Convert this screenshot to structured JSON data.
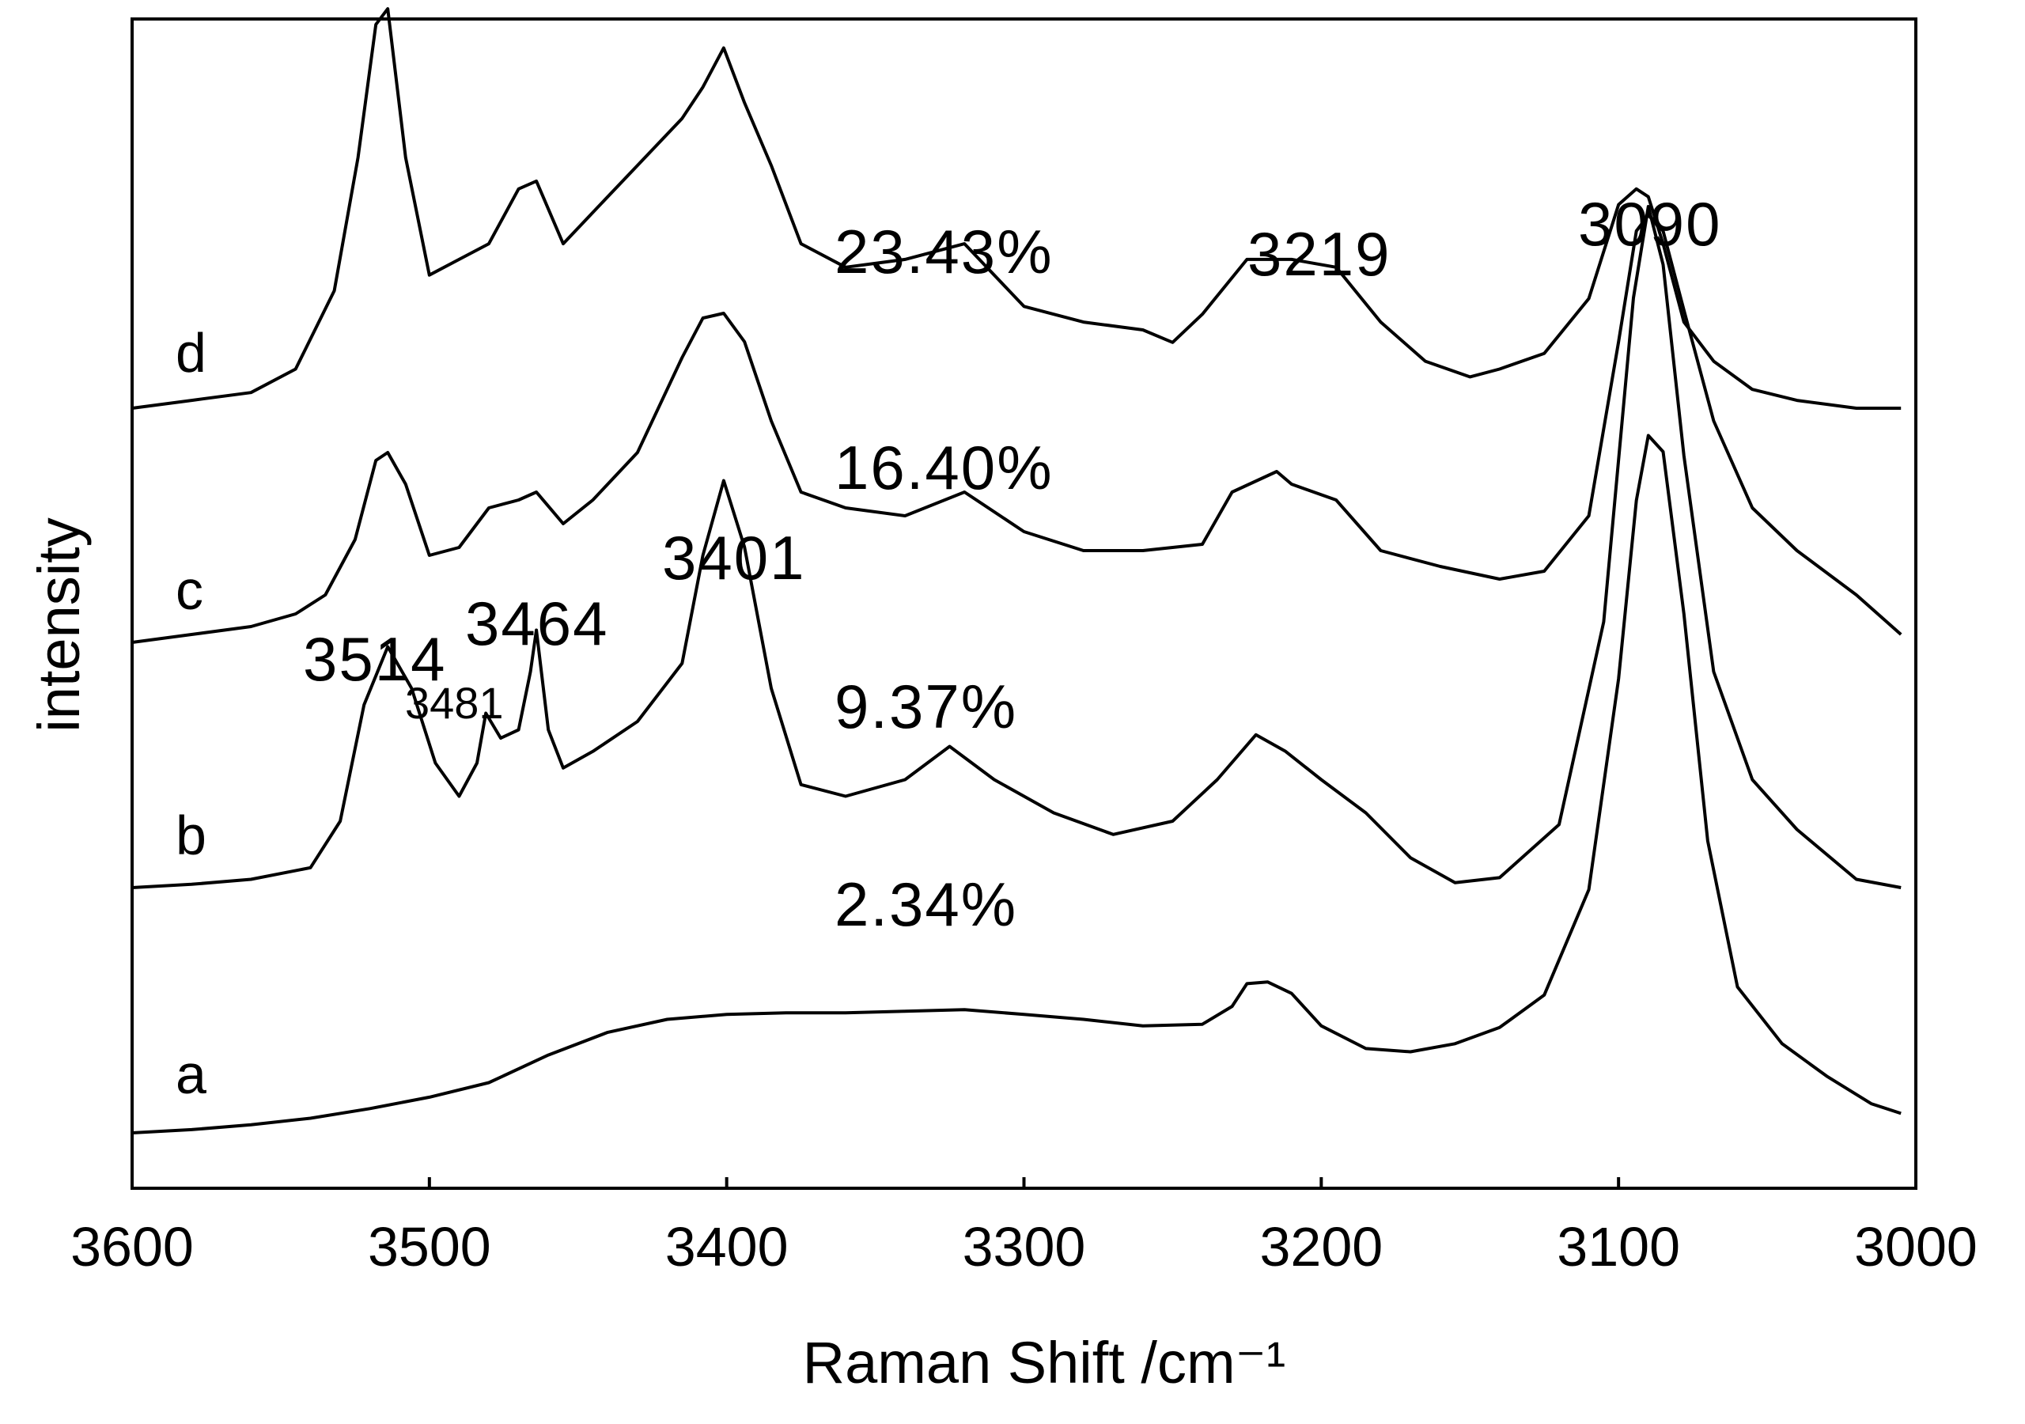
{
  "chart_data": {
    "type": "line",
    "title": "",
    "xlabel": "Raman Shift /cm⁻¹",
    "ylabel": "intensity",
    "xlim": [
      3600,
      3000
    ],
    "x_reversed": true,
    "x_ticks": [
      3600,
      3500,
      3400,
      3300,
      3200,
      3100,
      3000
    ],
    "y_ticks_shown": false,
    "grid": false,
    "series": [
      {
        "name": "a",
        "concentration": "2.34%",
        "baseline": 0.0,
        "x": [
          3600,
          3580,
          3560,
          3540,
          3520,
          3500,
          3480,
          3460,
          3440,
          3420,
          3400,
          3380,
          3360,
          3340,
          3320,
          3300,
          3280,
          3260,
          3240,
          3230,
          3225,
          3218,
          3210,
          3200,
          3185,
          3170,
          3155,
          3140,
          3125,
          3110,
          3100,
          3094,
          3090,
          3085,
          3078,
          3070,
          3060,
          3045,
          3030,
          3015,
          3005
        ],
        "y": [
          0.0,
          0.02,
          0.05,
          0.09,
          0.15,
          0.22,
          0.31,
          0.48,
          0.62,
          0.7,
          0.73,
          0.74,
          0.74,
          0.75,
          0.76,
          0.73,
          0.7,
          0.66,
          0.67,
          0.78,
          0.92,
          0.93,
          0.86,
          0.66,
          0.52,
          0.5,
          0.55,
          0.65,
          0.85,
          1.5,
          2.8,
          3.9,
          4.3,
          4.2,
          3.2,
          1.8,
          0.9,
          0.55,
          0.35,
          0.18,
          0.12
        ]
      },
      {
        "name": "b",
        "concentration": "9.37%",
        "baseline": 0.0,
        "x": [
          3600,
          3580,
          3560,
          3540,
          3530,
          3522,
          3514,
          3506,
          3498,
          3490,
          3484,
          3481,
          3476,
          3470,
          3466,
          3464,
          3460,
          3455,
          3445,
          3430,
          3415,
          3408,
          3401,
          3394,
          3385,
          3375,
          3360,
          3340,
          3325,
          3310,
          3290,
          3270,
          3250,
          3235,
          3222,
          3212,
          3200,
          3185,
          3170,
          3155,
          3140,
          3120,
          3105,
          3095,
          3090,
          3085,
          3078,
          3068,
          3055,
          3040,
          3020,
          3005
        ],
        "y": [
          0.0,
          0.02,
          0.05,
          0.12,
          0.4,
          1.1,
          1.45,
          1.2,
          0.75,
          0.55,
          0.75,
          1.05,
          0.9,
          0.95,
          1.3,
          1.55,
          0.95,
          0.72,
          0.82,
          1.0,
          1.35,
          2.0,
          2.45,
          2.05,
          1.2,
          0.62,
          0.55,
          0.65,
          0.85,
          0.65,
          0.45,
          0.32,
          0.4,
          0.65,
          0.92,
          0.82,
          0.65,
          0.45,
          0.18,
          0.03,
          0.06,
          0.38,
          1.6,
          3.55,
          4.1,
          3.75,
          2.6,
          1.3,
          0.65,
          0.35,
          0.05,
          0.0
        ]
      },
      {
        "name": "c",
        "concentration": "16.40%",
        "baseline": 0.0,
        "x": [
          3600,
          3580,
          3560,
          3545,
          3535,
          3525,
          3518,
          3514,
          3508,
          3500,
          3490,
          3480,
          3470,
          3464,
          3455,
          3445,
          3430,
          3415,
          3408,
          3401,
          3394,
          3385,
          3375,
          3360,
          3340,
          3320,
          3300,
          3280,
          3260,
          3240,
          3230,
          3215,
          3210,
          3195,
          3180,
          3160,
          3140,
          3125,
          3110,
          3100,
          3094,
          3090,
          3085,
          3078,
          3068,
          3055,
          3040,
          3020,
          3005
        ],
        "y": [
          0.0,
          0.05,
          0.1,
          0.18,
          0.3,
          0.65,
          1.15,
          1.2,
          1.0,
          0.55,
          0.6,
          0.85,
          0.9,
          0.95,
          0.75,
          0.9,
          1.2,
          1.8,
          2.05,
          2.08,
          1.9,
          1.4,
          0.95,
          0.85,
          0.8,
          0.95,
          0.7,
          0.58,
          0.58,
          0.62,
          0.95,
          1.08,
          1.0,
          0.9,
          0.58,
          0.48,
          0.4,
          0.45,
          0.8,
          1.9,
          2.6,
          2.7,
          2.6,
          2.1,
          1.4,
          0.85,
          0.58,
          0.3,
          0.05
        ]
      },
      {
        "name": "d",
        "concentration": "23.43%",
        "baseline": 0.0,
        "x": [
          3600,
          3580,
          3560,
          3545,
          3532,
          3524,
          3518,
          3514,
          3508,
          3500,
          3490,
          3480,
          3470,
          3464,
          3455,
          3445,
          3430,
          3415,
          3408,
          3401,
          3394,
          3385,
          3375,
          3360,
          3340,
          3320,
          3300,
          3280,
          3260,
          3250,
          3240,
          3225,
          3210,
          3195,
          3180,
          3165,
          3150,
          3140,
          3125,
          3110,
          3100,
          3094,
          3090,
          3085,
          3078,
          3068,
          3055,
          3040,
          3020,
          3005
        ],
        "y": [
          0.0,
          0.05,
          0.1,
          0.25,
          0.75,
          1.6,
          2.45,
          2.55,
          1.6,
          0.85,
          0.95,
          1.05,
          1.4,
          1.45,
          1.05,
          1.25,
          1.55,
          1.85,
          2.05,
          2.3,
          1.95,
          1.55,
          1.05,
          0.9,
          0.95,
          1.05,
          0.65,
          0.55,
          0.5,
          0.42,
          0.6,
          0.95,
          0.95,
          0.9,
          0.55,
          0.3,
          0.2,
          0.25,
          0.35,
          0.7,
          1.3,
          1.4,
          1.35,
          1.05,
          0.55,
          0.3,
          0.12,
          0.05,
          0.0,
          0.0
        ]
      }
    ],
    "annotations": {
      "peaks": [
        {
          "text": "3514",
          "x": 3514
        },
        {
          "text": "3481",
          "x": 3481
        },
        {
          "text": "3464",
          "x": 3464
        },
        {
          "text": "3401",
          "x": 3401
        },
        {
          "text": "3219",
          "x": 3219
        },
        {
          "text": "3090",
          "x": 3090
        }
      ],
      "concentrations": [
        "2.34%",
        "9.37%",
        "16.40%",
        "23.43%"
      ]
    }
  }
}
